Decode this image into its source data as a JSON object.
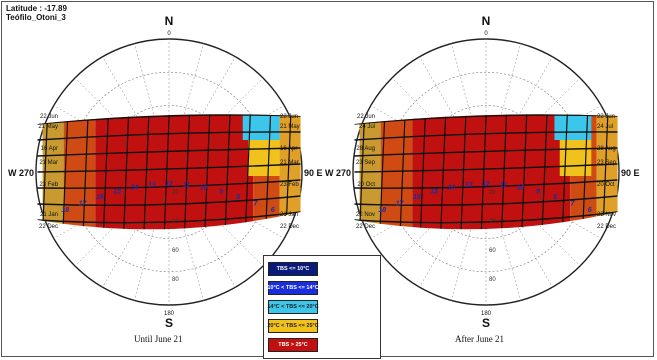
{
  "header": {
    "latitude": "Latitude : -17.89",
    "station": "Teófilo_Otoni_3"
  },
  "legend": [
    {
      "label": "TBS <= 10°C",
      "color": "#0a1a7a"
    },
    {
      "label": "10°C < TBS <= 14°C",
      "color": "#1a2ee0"
    },
    {
      "label": "14°C < TBS <= 20°C",
      "color": "#3cc6ec"
    },
    {
      "label": "20°C < TBS <= 25°C",
      "color": "#f2c21c"
    },
    {
      "label": "TBS > 25°C",
      "color": "#c01010"
    }
  ],
  "charts": [
    {
      "caption": "Until June 21",
      "north": "N",
      "north_deg": "0",
      "south": "S",
      "south_deg": "180",
      "west": "W 270",
      "east": "90 E",
      "ring_labels": [
        "20",
        "40",
        "60",
        "80"
      ],
      "hours": [
        "18",
        "17",
        "16",
        "15",
        "14",
        "13",
        "12",
        "11",
        "10",
        "9",
        "8",
        "7",
        "6"
      ],
      "left_dates": [
        "22 Jun",
        "21 May",
        "16 Apr",
        "21 Mar",
        "23 Feb",
        "21 Jan",
        "22 Dec"
      ],
      "right_dates": [
        "22 Jun",
        "21 May",
        "16 Apr",
        "21 Mar",
        "23 Feb",
        "21 Jan",
        "22 Dec"
      ]
    },
    {
      "caption": "After June 21",
      "north": "N",
      "north_deg": "0",
      "south": "S",
      "south_deg": "180",
      "west": "W 270",
      "east": "90 E",
      "ring_labels": [
        "20",
        "40",
        "60",
        "80"
      ],
      "hours": [
        "18",
        "17",
        "16",
        "15",
        "14",
        "13",
        "12",
        "11",
        "10",
        "9",
        "8",
        "7",
        "6"
      ],
      "left_dates": [
        "22 Jun",
        "24 Jul",
        "28 Aug",
        "23 Sep",
        "20 Oct",
        "22 Nov",
        "22 Dec"
      ],
      "right_dates": [
        "22 Jun",
        "24 Jul",
        "28 Aug",
        "23 Sep",
        "20 Oct",
        "22 Nov",
        "22 Dec"
      ]
    }
  ]
}
